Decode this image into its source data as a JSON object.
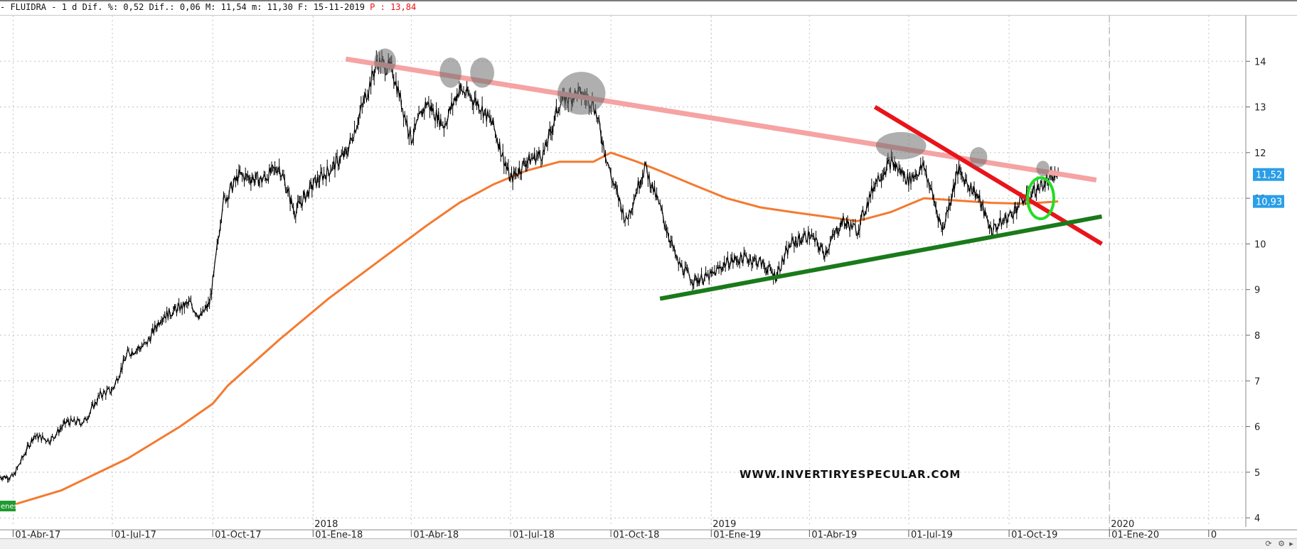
{
  "header": {
    "text": "- FLUIDRA -  1 d Dif. %: 0,52 Dif.: 0,06 M: 11,54 m: 11,30 F: 15-11-2019 ",
    "price": "P : 13,84"
  },
  "chart_data": {
    "type": "line",
    "title": "",
    "ylim": [
      3.8,
      15.0
    ],
    "y_ticks": [
      4,
      5,
      6,
      7,
      8,
      9,
      10,
      11,
      12,
      13,
      14
    ],
    "x_ticks": [
      "01-Abr-17",
      "01-Jul-17",
      "01-Oct-17",
      "01-Ene-18",
      "01-Abr-18",
      "01-Jul-18",
      "01-Oct-18",
      "01-Ene-19",
      "01-Abr-19",
      "01-Jul-19",
      "01-Oct-19",
      "01-Ene-20",
      "0"
    ],
    "year_labels": [
      "2018",
      "2019",
      "2020"
    ],
    "price_labels": {
      "last": "11,52",
      "ma": "10,93"
    },
    "legend_tag": "enes",
    "watermark": "WWW.INVERTIRYESPECULAR.COM",
    "colors": {
      "price": "#000000",
      "ma": "#f47a30",
      "resistance": "#f5a3a3",
      "downtrend": "#e8141a",
      "support": "#1a7a1a",
      "highlight": "#22dd22",
      "label_bg": "#2b9ee8"
    },
    "series": [
      {
        "name": "",
        "role": "price",
        "x": [
          "2017-03-20",
          "2017-04-01",
          "2017-04-20",
          "2017-05-05",
          "2017-05-20",
          "2017-06-05",
          "2017-06-20",
          "2017-07-01",
          "2017-07-15",
          "2017-08-01",
          "2017-08-15",
          "2017-09-01",
          "2017-09-10",
          "2017-09-20",
          "2017-09-28",
          "2017-10-02",
          "2017-10-10",
          "2017-10-25",
          "2017-11-15",
          "2017-12-01",
          "2017-12-15",
          "2018-01-01",
          "2018-01-15",
          "2018-02-01",
          "2018-02-15",
          "2018-03-01",
          "2018-03-15",
          "2018-04-01",
          "2018-04-15",
          "2018-05-01",
          "2018-05-15",
          "2018-06-01",
          "2018-06-15",
          "2018-07-01",
          "2018-07-15",
          "2018-08-01",
          "2018-08-15",
          "2018-09-01",
          "2018-09-15",
          "2018-10-01",
          "2018-10-15",
          "2018-11-01",
          "2018-11-15",
          "2018-12-01",
          "2018-12-15",
          "2019-01-01",
          "2019-01-15",
          "2019-02-01",
          "2019-02-15",
          "2019-03-01",
          "2019-03-15",
          "2019-04-01",
          "2019-04-15",
          "2019-05-01",
          "2019-05-15",
          "2019-06-01",
          "2019-06-15",
          "2019-07-01",
          "2019-07-15",
          "2019-08-01",
          "2019-08-15",
          "2019-09-01",
          "2019-09-15",
          "2019-10-01",
          "2019-10-15",
          "2019-11-01",
          "2019-11-15"
        ],
        "y": [
          4.9,
          4.9,
          5.8,
          5.7,
          6.1,
          6.1,
          6.7,
          6.8,
          7.6,
          7.8,
          8.4,
          8.6,
          8.7,
          8.4,
          8.7,
          9.3,
          10.9,
          11.5,
          11.4,
          11.7,
          10.7,
          11.3,
          11.6,
          12.0,
          13.0,
          14.0,
          13.8,
          12.3,
          13.1,
          12.6,
          13.4,
          13.1,
          12.6,
          11.4,
          11.8,
          12.0,
          13.1,
          13.3,
          13.1,
          11.5,
          10.5,
          11.7,
          10.8,
          9.6,
          9.2,
          9.3,
          9.6,
          9.7,
          9.6,
          9.3,
          10.0,
          10.2,
          9.8,
          10.5,
          10.3,
          11.4,
          11.8,
          11.4,
          11.7,
          10.3,
          11.6,
          11.1,
          10.3,
          10.6,
          11.0,
          11.3,
          11.52
        ]
      },
      {
        "name": "",
        "role": "moving-average",
        "x": [
          "2017-03-20",
          "2017-05-15",
          "2017-07-15",
          "2017-09-01",
          "2017-10-01",
          "2017-10-15",
          "2017-12-01",
          "2018-01-15",
          "2018-03-01",
          "2018-04-15",
          "2018-05-15",
          "2018-06-15",
          "2018-07-15",
          "2018-08-15",
          "2018-09-15",
          "2018-10-01",
          "2018-10-25",
          "2018-11-15",
          "2018-12-15",
          "2019-01-15",
          "2019-02-15",
          "2019-03-15",
          "2019-04-15",
          "2019-05-15",
          "2019-06-15",
          "2019-07-15",
          "2019-08-15",
          "2019-09-15",
          "2019-10-15",
          "2019-11-15"
        ],
        "y": [
          4.2,
          4.6,
          5.3,
          6.0,
          6.5,
          6.9,
          7.9,
          8.8,
          9.6,
          10.4,
          10.9,
          11.3,
          11.6,
          11.8,
          11.8,
          12.0,
          11.8,
          11.6,
          11.3,
          11.0,
          10.8,
          10.7,
          10.6,
          10.5,
          10.7,
          11.0,
          10.95,
          10.9,
          10.88,
          10.93
        ]
      }
    ],
    "trendlines": [
      {
        "role": "resistance",
        "from": [
          "2018-01-31",
          14.05
        ],
        "to": [
          "2019-12-20",
          11.4
        ]
      },
      {
        "role": "downtrend",
        "from": [
          "2019-05-31",
          13.0
        ],
        "to": [
          "2019-12-25",
          10.0
        ]
      },
      {
        "role": "support",
        "from": [
          "2018-11-15",
          8.8
        ],
        "to": [
          "2019-12-25",
          10.6
        ]
      }
    ],
    "highlights": [
      {
        "shape": "ellipse",
        "at": [
          "2018-03-08",
          14.0
        ],
        "rx_days": 10,
        "ry": 0.28
      },
      {
        "shape": "ellipse",
        "at": [
          "2018-05-07",
          13.75
        ],
        "rx_days": 10,
        "ry": 0.33
      },
      {
        "shape": "ellipse",
        "at": [
          "2018-06-05",
          13.75
        ],
        "rx_days": 11,
        "ry": 0.33
      },
      {
        "shape": "ellipse",
        "at": [
          "2018-09-04",
          13.3
        ],
        "rx_days": 22,
        "ry": 0.47
      },
      {
        "shape": "ellipse",
        "at": [
          "2019-06-24",
          12.15
        ],
        "rx_days": 23,
        "ry": 0.3
      },
      {
        "shape": "ellipse",
        "at": [
          "2019-09-03",
          11.9
        ],
        "rx_days": 8,
        "ry": 0.22
      },
      {
        "shape": "ellipse",
        "at": [
          "2019-11-01",
          11.65
        ],
        "rx_days": 6,
        "ry": 0.17,
        "color": "gray"
      },
      {
        "shape": "ellipse",
        "at": [
          "2019-10-30",
          11.0
        ],
        "rx_days": 12,
        "ry": 0.45,
        "color": "green"
      }
    ]
  }
}
